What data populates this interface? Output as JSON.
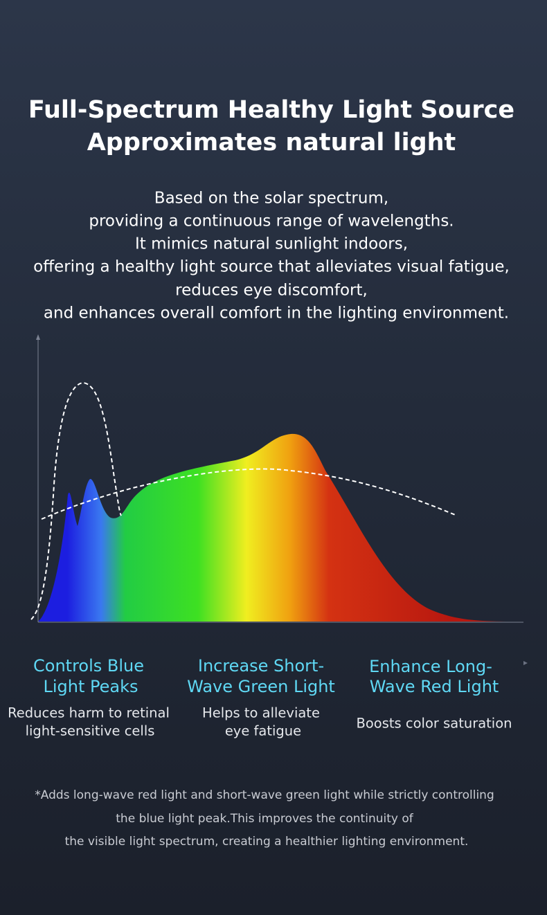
{
  "header": {
    "title": [
      "Full-Spectrum Healthy Light Source",
      "Approximates natural light"
    ],
    "description": [
      "Based on the solar spectrum,",
      "providing a continuous range of wavelengths.",
      "It mimics natural sunlight indoors,",
      "offering a healthy light source that alleviates visual fatigue,",
      "reduces eye discomfort,",
      "and enhances overall comfort in the lighting environment."
    ]
  },
  "features": [
    {
      "heading": [
        "Controls Blue",
        "Light Peaks"
      ],
      "text": [
        "Reduces harm to retinal",
        "light-sensitive cells"
      ]
    },
    {
      "heading": [
        "Increase Short-",
        "Wave Green Light"
      ],
      "text": [
        "Helps to alleviate",
        "eye fatigue"
      ]
    },
    {
      "heading": [
        "Enhance Long-",
        "Wave Red Light"
      ],
      "text": [
        "Boosts color saturation"
      ]
    }
  ],
  "footnote": [
    "*Adds long-wave red light and short-wave green light while strictly controlling",
    "the blue light peak.This improves the continuity of",
    "the visible light spectrum, creating a healthier lighting environment."
  ]
}
